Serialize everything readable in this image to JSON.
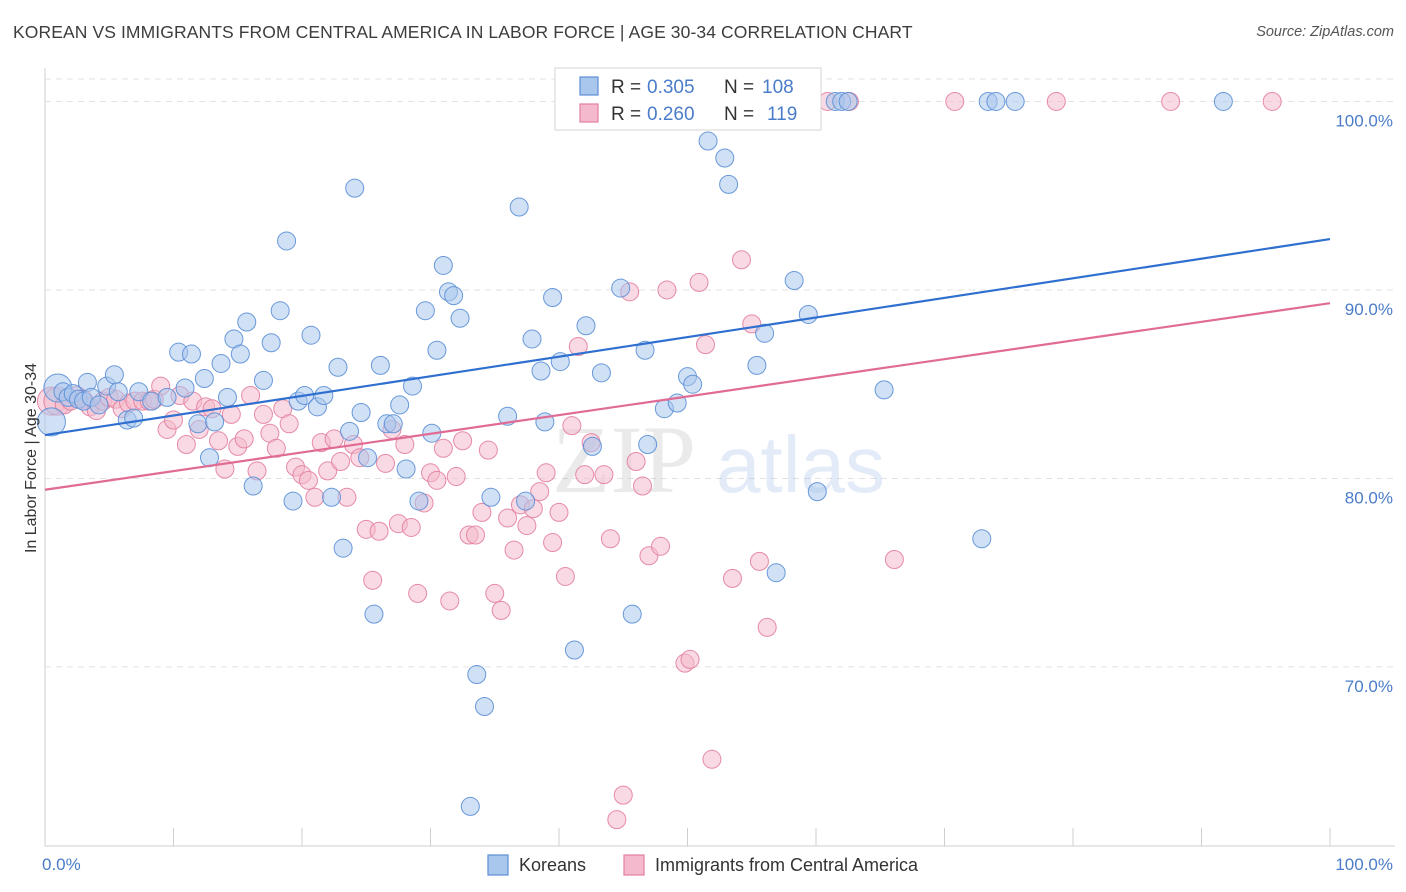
{
  "title": "KOREAN VS IMMIGRANTS FROM CENTRAL AMERICA IN LABOR FORCE | AGE 30-34 CORRELATION CHART",
  "source": "Source: ZipAtlas.com",
  "watermark": {
    "zip": "ZIP",
    "atlas": "atlas"
  },
  "colors": {
    "koreans_fill": "#a9c6ec",
    "koreans_stroke": "#5b8fd6",
    "koreans_line": "#2f6fcf",
    "central_fill": "#f4b9cc",
    "central_stroke": "#e37f9f",
    "central_line": "#e06b95",
    "axis_text": "#4a7cc9",
    "grid": "#e2e2e2"
  },
  "legend": {
    "rows": [
      {
        "r_label": "R =",
        "r_value": "0.305",
        "n_label": "N =",
        "n_value": "108"
      },
      {
        "r_label": "R =",
        "r_value": "0.260",
        "n_label": "N =",
        "n_value": "119"
      }
    ]
  },
  "bottom_legend": [
    "Koreans",
    "Immigrants from Central America"
  ],
  "chart_data": {
    "type": "scatter",
    "title": "KOREAN VS IMMIGRANTS FROM CENTRAL AMERICA IN LABOR FORCE | AGE 30-34 CORRELATION CHART",
    "xlabel": "",
    "ylabel": "In Labor Force | Age 30-34",
    "xlim": [
      0,
      100
    ],
    "ylim": [
      60.5,
      102.2
    ],
    "x_tick_labels": [
      "0.0%",
      "100.0%"
    ],
    "y_ticks": [
      70,
      80,
      90,
      100
    ],
    "y_tick_labels": [
      "70.0%",
      "80.0%",
      "90.0%",
      "100.0%"
    ],
    "grid": true,
    "series": [
      {
        "name": "Koreans",
        "R": 0.305,
        "N": 108,
        "trend": {
          "x": [
            0,
            100
          ],
          "y": [
            82.3,
            92.7
          ]
        },
        "points": [
          [
            0.5,
            83
          ],
          [
            1.0,
            84.8
          ],
          [
            1.4,
            84.6
          ],
          [
            1.8,
            84.3
          ],
          [
            2.2,
            84.5
          ],
          [
            2.6,
            84.2
          ],
          [
            3.0,
            84.1
          ],
          [
            3.3,
            85.1
          ],
          [
            3.6,
            84.3
          ],
          [
            4.2,
            83.9
          ],
          [
            4.8,
            84.9
          ],
          [
            5.4,
            85.5
          ],
          [
            5.7,
            84.6
          ],
          [
            6.4,
            83.1
          ],
          [
            6.9,
            83.2
          ],
          [
            7.3,
            84.6
          ],
          [
            8.3,
            84.1
          ],
          [
            9.5,
            84.3
          ],
          [
            10.4,
            86.7
          ],
          [
            10.9,
            84.8
          ],
          [
            11.4,
            86.6
          ],
          [
            11.9,
            82.9
          ],
          [
            12.4,
            85.3
          ],
          [
            12.8,
            81.1
          ],
          [
            13.2,
            83
          ],
          [
            13.7,
            86.1
          ],
          [
            14.2,
            84.3
          ],
          [
            14.7,
            87.4
          ],
          [
            15.2,
            86.6
          ],
          [
            15.7,
            88.3
          ],
          [
            16.2,
            79.6
          ],
          [
            17,
            85.2
          ],
          [
            17.6,
            87.2
          ],
          [
            18.3,
            88.9
          ],
          [
            18.8,
            92.6
          ],
          [
            19.3,
            78.8
          ],
          [
            19.7,
            84.1
          ],
          [
            20.2,
            84.4
          ],
          [
            20.7,
            87.6
          ],
          [
            21.2,
            83.8
          ],
          [
            21.7,
            84.4
          ],
          [
            22.3,
            79
          ],
          [
            22.8,
            85.9
          ],
          [
            23.2,
            76.3
          ],
          [
            23.7,
            82.5
          ],
          [
            24.1,
            95.4
          ],
          [
            24.6,
            83.5
          ],
          [
            25.1,
            81.1
          ],
          [
            25.6,
            72.8
          ],
          [
            26.1,
            86
          ],
          [
            26.6,
            82.9
          ],
          [
            27.1,
            82.9
          ],
          [
            27.6,
            83.9
          ],
          [
            28.1,
            80.5
          ],
          [
            28.6,
            84.9
          ],
          [
            29.1,
            78.8
          ],
          [
            29.6,
            88.9
          ],
          [
            30.1,
            82.4
          ],
          [
            30.5,
            86.8
          ],
          [
            31,
            91.3
          ],
          [
            31.4,
            89.9
          ],
          [
            31.8,
            89.7
          ],
          [
            32.3,
            88.5
          ],
          [
            33.1,
            62.6
          ],
          [
            33.6,
            69.6
          ],
          [
            34.2,
            67.9
          ],
          [
            34.7,
            79
          ],
          [
            36,
            83.3
          ],
          [
            36.9,
            94.4
          ],
          [
            37.4,
            78.8
          ],
          [
            37.9,
            87.4
          ],
          [
            38.6,
            85.7
          ],
          [
            38.9,
            83
          ],
          [
            39.5,
            89.6
          ],
          [
            40.1,
            86.2
          ],
          [
            40.6,
            100
          ],
          [
            41.2,
            70.9
          ],
          [
            42.1,
            88.1
          ],
          [
            42.6,
            81.7
          ],
          [
            43.3,
            85.6
          ],
          [
            44.8,
            90.1
          ],
          [
            45.7,
            72.8
          ],
          [
            46.7,
            86.8
          ],
          [
            46.9,
            81.8
          ],
          [
            48.2,
            83.7
          ],
          [
            49.2,
            84
          ],
          [
            50,
            85.4
          ],
          [
            50.4,
            85
          ],
          [
            51.6,
            97.9
          ],
          [
            51.9,
            100
          ],
          [
            52.9,
            97
          ],
          [
            53.2,
            95.6
          ],
          [
            55.4,
            86
          ],
          [
            56,
            87.7
          ],
          [
            56.9,
            75
          ],
          [
            58.3,
            90.5
          ],
          [
            59.4,
            88.7
          ],
          [
            60.1,
            79.3
          ],
          [
            61.5,
            100
          ],
          [
            62,
            100
          ],
          [
            62.5,
            100
          ],
          [
            65.3,
            84.7
          ],
          [
            72.9,
            76.8
          ],
          [
            73.4,
            100
          ],
          [
            74,
            100
          ],
          [
            75.5,
            100
          ],
          [
            91.7,
            100
          ]
        ]
      },
      {
        "name": "Immigrants from Central America",
        "R": 0.26,
        "N": 119,
        "trend": {
          "x": [
            0,
            100
          ],
          "y": [
            79.4,
            89.3
          ]
        },
        "points": [
          [
            0.5,
            84.1
          ],
          [
            1.0,
            84.1
          ],
          [
            1.5,
            83.9
          ],
          [
            2.0,
            84.1
          ],
          [
            2.5,
            84.4
          ],
          [
            3.0,
            84.2
          ],
          [
            3.5,
            83.8
          ],
          [
            4.0,
            83.6
          ],
          [
            4.5,
            84.1
          ],
          [
            5.0,
            84.3
          ],
          [
            5.5,
            84.2
          ],
          [
            6.0,
            83.7
          ],
          [
            6.5,
            84
          ],
          [
            7.0,
            84.1
          ],
          [
            7.6,
            84.1
          ],
          [
            8.1,
            84.1
          ],
          [
            8.5,
            84.2
          ],
          [
            9.0,
            84.9
          ],
          [
            9.5,
            82.6
          ],
          [
            10.0,
            83.1
          ],
          [
            10.5,
            84.4
          ],
          [
            11.0,
            81.8
          ],
          [
            11.5,
            84.1
          ],
          [
            12.0,
            82.6
          ],
          [
            12.5,
            83.8
          ],
          [
            13.0,
            83.7
          ],
          [
            13.5,
            82
          ],
          [
            14.0,
            80.5
          ],
          [
            14.5,
            83.4
          ],
          [
            15.0,
            81.7
          ],
          [
            15.5,
            82.1
          ],
          [
            16.0,
            84.4
          ],
          [
            16.5,
            80.4
          ],
          [
            17.0,
            83.4
          ],
          [
            17.5,
            82.4
          ],
          [
            18.0,
            81.6
          ],
          [
            18.5,
            83.7
          ],
          [
            19.0,
            82.9
          ],
          [
            19.5,
            80.6
          ],
          [
            20.0,
            80.2
          ],
          [
            20.5,
            79.9
          ],
          [
            21.0,
            79
          ],
          [
            21.5,
            81.9
          ],
          [
            22.0,
            80.4
          ],
          [
            22.5,
            82.1
          ],
          [
            23.0,
            80.9
          ],
          [
            23.5,
            79
          ],
          [
            24.0,
            81.8
          ],
          [
            24.5,
            81.1
          ],
          [
            25.0,
            77.3
          ],
          [
            25.5,
            74.6
          ],
          [
            26.0,
            77.2
          ],
          [
            26.5,
            80.8
          ],
          [
            27.0,
            82.6
          ],
          [
            27.5,
            77.6
          ],
          [
            28.0,
            81.8
          ],
          [
            28.5,
            77.4
          ],
          [
            29.0,
            73.9
          ],
          [
            29.5,
            78.7
          ],
          [
            30.0,
            80.3
          ],
          [
            30.5,
            79.9
          ],
          [
            31.0,
            81.6
          ],
          [
            31.5,
            73.5
          ],
          [
            32.0,
            80.1
          ],
          [
            32.5,
            82
          ],
          [
            33.0,
            77
          ],
          [
            33.5,
            77
          ],
          [
            34.0,
            78.2
          ],
          [
            34.5,
            81.5
          ],
          [
            35.0,
            73.9
          ],
          [
            35.5,
            73
          ],
          [
            36.0,
            77.9
          ],
          [
            36.5,
            76.2
          ],
          [
            37.0,
            78.6
          ],
          [
            37.5,
            77.5
          ],
          [
            38.0,
            78.4
          ],
          [
            38.5,
            79.3
          ],
          [
            39.0,
            80.3
          ],
          [
            39.5,
            76.6
          ],
          [
            40.0,
            78.2
          ],
          [
            40.5,
            74.8
          ],
          [
            41.0,
            82.8
          ],
          [
            41.5,
            87
          ],
          [
            42.0,
            80.2
          ],
          [
            42.5,
            81.9
          ],
          [
            43.5,
            80.2
          ],
          [
            44.0,
            76.8
          ],
          [
            44.5,
            61.9
          ],
          [
            45.0,
            63.2
          ],
          [
            45.5,
            89.9
          ],
          [
            46.0,
            80.9
          ],
          [
            46.5,
            79.6
          ],
          [
            47.0,
            75.9
          ],
          [
            47.9,
            76.4
          ],
          [
            48.4,
            90
          ],
          [
            49.8,
            70.2
          ],
          [
            50.2,
            70.4
          ],
          [
            50.9,
            90.4
          ],
          [
            51.4,
            87.1
          ],
          [
            51.9,
            65.1
          ],
          [
            52.6,
            100
          ],
          [
            53.5,
            74.7
          ],
          [
            54.2,
            91.6
          ],
          [
            55,
            88.2
          ],
          [
            55.6,
            75.6
          ],
          [
            56.2,
            72.1
          ],
          [
            57.1,
            100
          ],
          [
            59.7,
            100
          ],
          [
            60.9,
            100
          ],
          [
            62.6,
            100
          ],
          [
            66.1,
            75.7
          ],
          [
            70.8,
            100
          ],
          [
            78.7,
            100
          ],
          [
            87.6,
            100
          ],
          [
            95.5,
            100
          ]
        ]
      }
    ]
  }
}
